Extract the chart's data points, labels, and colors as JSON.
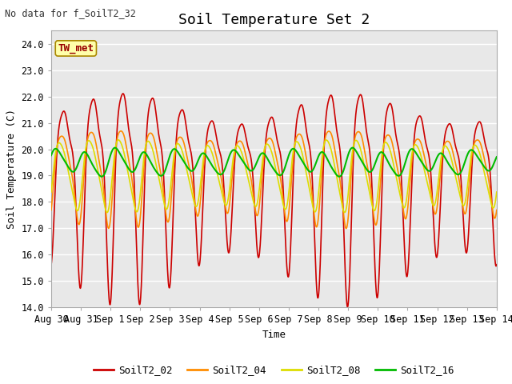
{
  "title": "Soil Temperature Set 2",
  "xlabel": "Time",
  "ylabel": "Soil Temperature (C)",
  "top_left_note": "No data for f_SoilT2_32",
  "annotation_box": "TW_met",
  "ylim": [
    14.0,
    24.5
  ],
  "yticks": [
    14.0,
    15.0,
    16.0,
    17.0,
    18.0,
    19.0,
    20.0,
    21.0,
    22.0,
    23.0,
    24.0
  ],
  "xtick_labels": [
    "Aug 30",
    "Aug 31",
    "Sep 1",
    "Sep 2",
    "Sep 3",
    "Sep 4",
    "Sep 5",
    "Sep 6",
    "Sep 7",
    "Sep 8",
    "Sep 9",
    "Sep 10",
    "Sep 11",
    "Sep 12",
    "Sep 13",
    "Sep 14"
  ],
  "series": {
    "SoilT2_02": {
      "color": "#CC0000",
      "lw": 1.2
    },
    "SoilT2_04": {
      "color": "#FF8C00",
      "lw": 1.2
    },
    "SoilT2_08": {
      "color": "#DDDD00",
      "lw": 1.2
    },
    "SoilT2_16": {
      "color": "#00BB00",
      "lw": 1.5
    }
  },
  "background_color": "#E8E8E8",
  "fig_background": "#FFFFFF",
  "grid_color": "#FFFFFF",
  "title_fontsize": 13,
  "label_fontsize": 9,
  "tick_fontsize": 8.5,
  "n_days": 15
}
